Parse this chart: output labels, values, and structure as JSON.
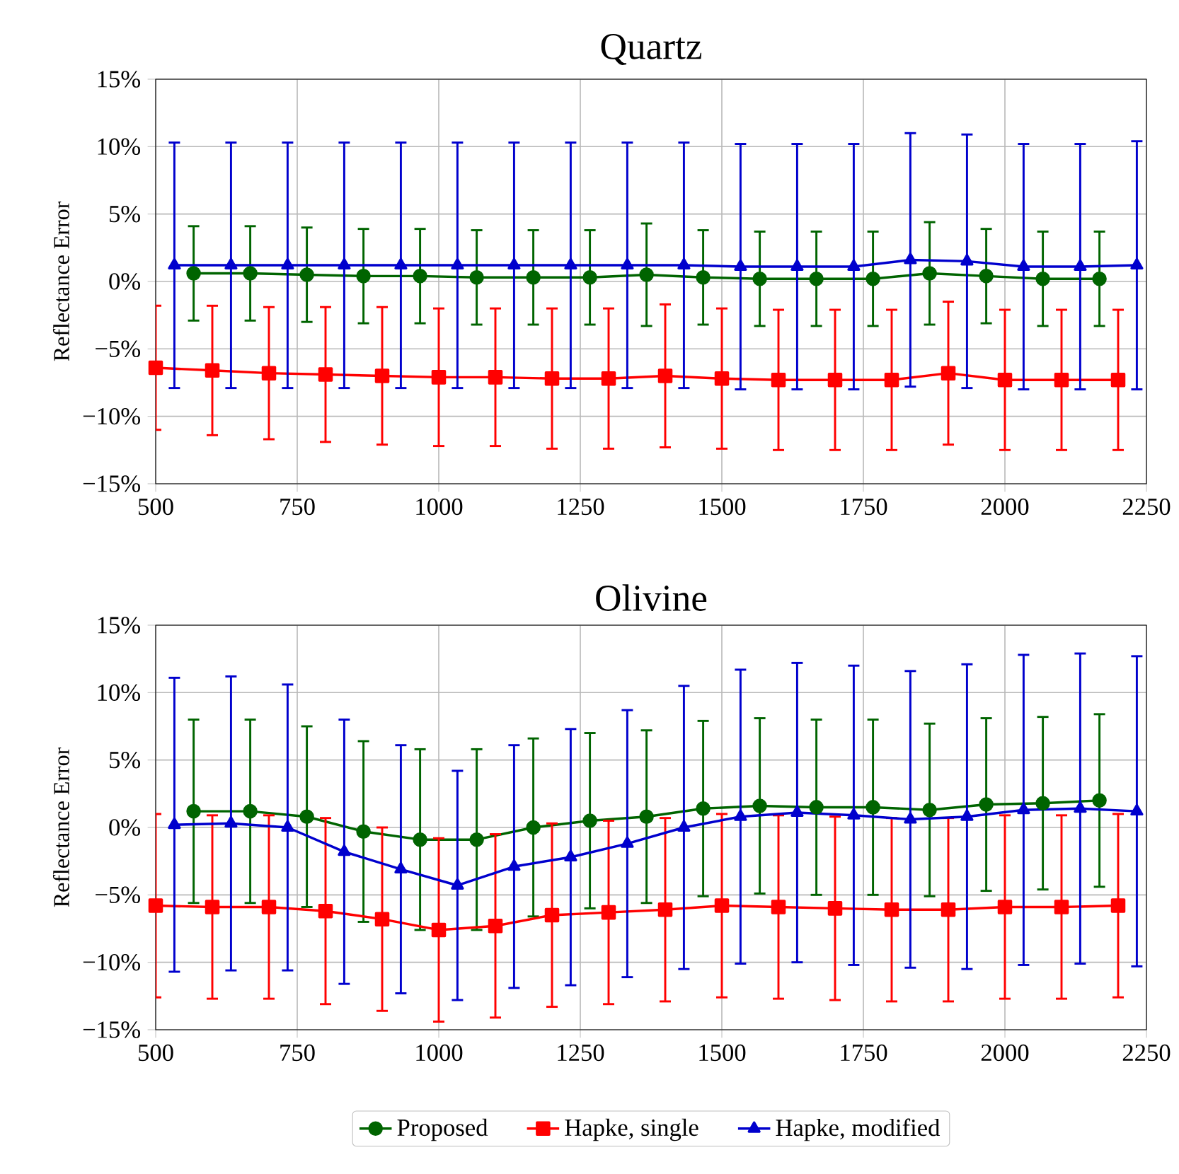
{
  "chart_data": [
    {
      "type": "line",
      "title": "Quartz",
      "ylabel": "Reflectance Error",
      "xlim": [
        500,
        2250
      ],
      "ylim": [
        -15,
        15
      ],
      "grid": true,
      "line_style": "solid",
      "xticks": [
        500,
        750,
        1000,
        1250,
        1500,
        1750,
        2000,
        2250
      ],
      "yticks": [
        {
          "value": -15,
          "label": "−15%"
        },
        {
          "value": -10,
          "label": "−10%"
        },
        {
          "value": -5,
          "label": "−5%"
        },
        {
          "value": 0,
          "label": "0%"
        },
        {
          "value": 5,
          "label": "5%"
        },
        {
          "value": 10,
          "label": "10%"
        },
        {
          "value": 15,
          "label": "15%"
        }
      ],
      "series": [
        {
          "color": "#006400",
          "marker": "circle",
          "x": [
            567,
            667,
            767,
            867,
            967,
            1067,
            1167,
            1267,
            1367,
            1467,
            1567,
            1667,
            1767,
            1867,
            1967,
            2067,
            2167
          ],
          "values": [
            0.6,
            0.6,
            0.5,
            0.4,
            0.4,
            0.3,
            0.3,
            0.3,
            0.5,
            0.3,
            0.2,
            0.2,
            0.2,
            0.6,
            0.4,
            0.2,
            0.2
          ],
          "errors": [
            3.5,
            3.5,
            3.5,
            3.5,
            3.5,
            3.5,
            3.5,
            3.5,
            3.8,
            3.5,
            3.5,
            3.5,
            3.5,
            3.8,
            3.5,
            3.5,
            3.5
          ]
        },
        {
          "color": "#ff0000",
          "marker": "square",
          "x": [
            500,
            600,
            700,
            800,
            900,
            1000,
            1100,
            1200,
            1300,
            1400,
            1500,
            1600,
            1700,
            1800,
            1900,
            2000,
            2100,
            2200
          ],
          "values": [
            -6.4,
            -6.6,
            -6.8,
            -6.9,
            -7.0,
            -7.1,
            -7.1,
            -7.2,
            -7.2,
            -7.0,
            -7.2,
            -7.3,
            -7.3,
            -7.3,
            -6.8,
            -7.3,
            -7.3,
            -7.3
          ],
          "errors": [
            4.6,
            4.8,
            4.9,
            5.0,
            5.1,
            5.1,
            5.1,
            5.2,
            5.2,
            5.3,
            5.2,
            5.2,
            5.2,
            5.2,
            5.3,
            5.2,
            5.2,
            5.2
          ]
        },
        {
          "color": "#0000cd",
          "marker": "triangle",
          "x": [
            533,
            633,
            733,
            833,
            933,
            1033,
            1133,
            1233,
            1333,
            1433,
            1533,
            1633,
            1733,
            1833,
            1933,
            2033,
            2133,
            2233
          ],
          "values": [
            1.2,
            1.2,
            1.2,
            1.2,
            1.2,
            1.2,
            1.2,
            1.2,
            1.2,
            1.2,
            1.1,
            1.1,
            1.1,
            1.6,
            1.5,
            1.1,
            1.1,
            1.2
          ],
          "errors": [
            9.1,
            9.1,
            9.1,
            9.1,
            9.1,
            9.1,
            9.1,
            9.1,
            9.1,
            9.1,
            9.1,
            9.1,
            9.1,
            9.4,
            9.4,
            9.1,
            9.1,
            9.2
          ]
        }
      ]
    },
    {
      "type": "line",
      "title": "Olivine",
      "ylabel": "Reflectance Error",
      "xlim": [
        500,
        2250
      ],
      "ylim": [
        -15,
        15
      ],
      "grid": true,
      "line_style": "solid",
      "legend": "bottom",
      "xticks": [
        500,
        750,
        1000,
        1250,
        1500,
        1750,
        2000,
        2250
      ],
      "yticks": [
        {
          "value": -15,
          "label": "−15%"
        },
        {
          "value": -10,
          "label": "−10%"
        },
        {
          "value": -5,
          "label": "−5%"
        },
        {
          "value": 0,
          "label": "0%"
        },
        {
          "value": 5,
          "label": "5%"
        },
        {
          "value": 10,
          "label": "10%"
        },
        {
          "value": 15,
          "label": "15%"
        }
      ],
      "series": [
        {
          "name": "Proposed",
          "color": "#006400",
          "marker": "circle",
          "x": [
            567,
            667,
            767,
            867,
            967,
            1067,
            1167,
            1267,
            1367,
            1467,
            1567,
            1667,
            1767,
            1867,
            1967,
            2067,
            2167
          ],
          "values": [
            1.2,
            1.2,
            0.8,
            -0.3,
            -0.9,
            -0.9,
            0.0,
            0.5,
            0.8,
            1.4,
            1.6,
            1.5,
            1.5,
            1.3,
            1.7,
            1.8,
            2.0
          ],
          "errors": [
            6.8,
            6.8,
            6.7,
            6.7,
            6.7,
            6.7,
            6.6,
            6.5,
            6.4,
            6.5,
            6.5,
            6.5,
            6.5,
            6.4,
            6.4,
            6.4,
            6.4
          ]
        },
        {
          "name": "Hapke, single",
          "color": "#ff0000",
          "marker": "square",
          "x": [
            500,
            600,
            700,
            800,
            900,
            1000,
            1100,
            1200,
            1300,
            1400,
            1500,
            1600,
            1700,
            1800,
            1900,
            2000,
            2100,
            2200
          ],
          "values": [
            -5.8,
            -5.9,
            -5.9,
            -6.2,
            -6.8,
            -7.6,
            -7.3,
            -6.5,
            -6.3,
            -6.1,
            -5.8,
            -5.9,
            -6.0,
            -6.1,
            -6.1,
            -5.9,
            -5.9,
            -5.8
          ],
          "errors": [
            6.8,
            6.8,
            6.8,
            6.9,
            6.8,
            6.8,
            6.8,
            6.8,
            6.8,
            6.8,
            6.8,
            6.8,
            6.8,
            6.8,
            6.8,
            6.8,
            6.8,
            6.8
          ]
        },
        {
          "name": "Hapke, modified",
          "color": "#0000cd",
          "marker": "triangle",
          "x": [
            533,
            633,
            733,
            833,
            933,
            1033,
            1133,
            1233,
            1333,
            1433,
            1533,
            1633,
            1733,
            1833,
            1933,
            2033,
            2133,
            2233
          ],
          "values": [
            0.2,
            0.3,
            0.0,
            -1.8,
            -3.1,
            -4.3,
            -2.9,
            -2.2,
            -1.2,
            0.0,
            0.8,
            1.1,
            0.9,
            0.6,
            0.8,
            1.3,
            1.4,
            1.2
          ],
          "errors": [
            10.9,
            10.9,
            10.6,
            9.8,
            9.2,
            8.5,
            9.0,
            9.5,
            9.9,
            10.5,
            10.9,
            11.1,
            11.1,
            11.0,
            11.3,
            11.5,
            11.5,
            11.5
          ]
        }
      ]
    }
  ]
}
